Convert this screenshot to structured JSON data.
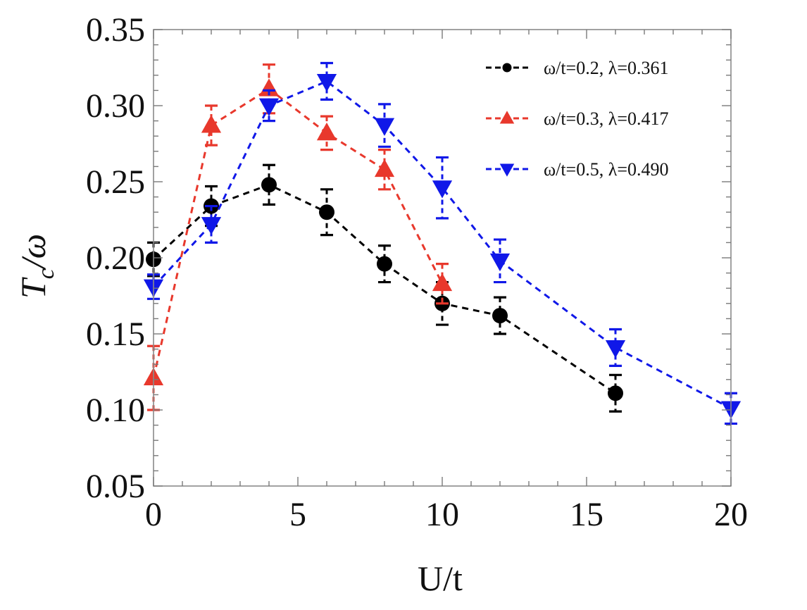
{
  "chart_data": {
    "type": "line",
    "title": "",
    "xlabel": "U/t",
    "ylabel": "T_c/ω",
    "ylabel_parts": {
      "main": "T",
      "sub": "c",
      "rest": "/ω"
    },
    "xlim": [
      0,
      20
    ],
    "ylim": [
      0.05,
      0.35
    ],
    "xticks": [
      0,
      5,
      10,
      15,
      20
    ],
    "xtick_labels": [
      "0",
      "5",
      "10",
      "15",
      "20"
    ],
    "yticks": [
      0.05,
      0.1,
      0.15,
      0.2,
      0.25,
      0.3,
      0.35
    ],
    "ytick_labels": [
      "0.05",
      "0.10",
      "0.15",
      "0.20",
      "0.25",
      "0.30",
      "0.35"
    ],
    "x_minor_step": 1,
    "y_minor_step": 0.01,
    "grid": false,
    "legend_position": "top-right",
    "series": [
      {
        "name": "ω/t=0.2, λ=0.361",
        "legend_label": "ω/t=0.2, λ=0.361",
        "color": "#000000",
        "marker": "circle",
        "x": [
          0,
          2,
          4,
          6,
          8,
          10,
          12,
          16
        ],
        "y": [
          0.199,
          0.234,
          0.248,
          0.23,
          0.196,
          0.17,
          0.162,
          0.111
        ],
        "err": [
          0.011,
          0.013,
          0.013,
          0.015,
          0.012,
          0.014,
          0.012,
          0.012
        ]
      },
      {
        "name": "ω/t=0.3, λ=0.417",
        "legend_label": "ω/t=0.3, λ=0.417",
        "color": "#e8382c",
        "marker": "triangle-up",
        "x": [
          0,
          2,
          4,
          6,
          8,
          10
        ],
        "y": [
          0.121,
          0.287,
          0.311,
          0.282,
          0.258,
          0.183
        ],
        "err": [
          0.021,
          0.013,
          0.016,
          0.011,
          0.013,
          0.013
        ]
      },
      {
        "name": "ω/t=0.5, λ=0.490",
        "legend_label": "ω/t=0.5, λ=0.490",
        "color": "#1018e8",
        "marker": "triangle-down",
        "x": [
          0,
          2,
          4,
          6,
          8,
          10,
          12,
          16,
          20
        ],
        "y": [
          0.181,
          0.222,
          0.3,
          0.316,
          0.287,
          0.246,
          0.198,
          0.141,
          0.101
        ],
        "err": [
          0.008,
          0.012,
          0.01,
          0.012,
          0.014,
          0.02,
          0.014,
          0.012,
          0.01
        ]
      }
    ]
  }
}
